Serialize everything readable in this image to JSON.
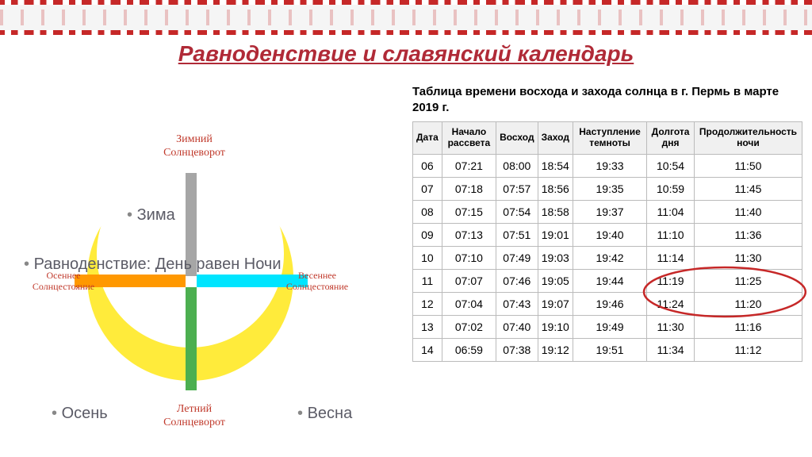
{
  "title": "Равноденствие и славянский календарь",
  "diagram": {
    "top_label_1": "Зимний",
    "top_label_2": "Солнцеворот",
    "bottom_label_1": "Летний",
    "bottom_label_2": "Солнцеворот",
    "left_label_1": "Осеннее",
    "left_label_2": "Солнцестояние",
    "right_label_1": "Весеннее",
    "right_label_2": "Солнцестояние",
    "season_winter": "Зима",
    "season_spring": "Весна",
    "season_autumn": "Осень",
    "equinox_text": "Равноденствие: День равен Ночи",
    "colors": {
      "crescent": "#ffeb3b",
      "bar_top": "#a6a6a6",
      "bar_bottom": "#4caf50",
      "bar_left": "#ff9800",
      "bar_right": "#00e5ff",
      "label": "#c0392b"
    }
  },
  "table": {
    "caption": "Таблица времени восхода и захода солнца в г. Пермь в марте 2019 г.",
    "columns": [
      "Дата",
      "Начало рассвета",
      "Восход",
      "Заход",
      "Наступление темноты",
      "Долгота дня",
      "Продолжительность ночи"
    ],
    "rows": [
      [
        "06",
        "07:21",
        "08:00",
        "18:54",
        "19:33",
        "10:54",
        "11:50"
      ],
      [
        "07",
        "07:18",
        "07:57",
        "18:56",
        "19:35",
        "10:59",
        "11:45"
      ],
      [
        "08",
        "07:15",
        "07:54",
        "18:58",
        "19:37",
        "11:04",
        "11:40"
      ],
      [
        "09",
        "07:13",
        "07:51",
        "19:01",
        "19:40",
        "11:10",
        "11:36"
      ],
      [
        "10",
        "07:10",
        "07:49",
        "19:03",
        "19:42",
        "11:14",
        "11:30"
      ],
      [
        "11",
        "07:07",
        "07:46",
        "19:05",
        "19:44",
        "11:19",
        "11:25"
      ],
      [
        "12",
        "07:04",
        "07:43",
        "19:07",
        "19:46",
        "11:24",
        "11:20"
      ],
      [
        "13",
        "07:02",
        "07:40",
        "19:10",
        "19:49",
        "11:30",
        "11:16"
      ],
      [
        "14",
        "06:59",
        "07:38",
        "19:12",
        "19:51",
        "11:34",
        "11:12"
      ]
    ],
    "circled_rows": [
      5,
      6
    ],
    "circled_cols": [
      5,
      6
    ],
    "circle_color": "#c62828",
    "header_bg": "#f0f0f0",
    "border_color": "#bbbbbb"
  }
}
